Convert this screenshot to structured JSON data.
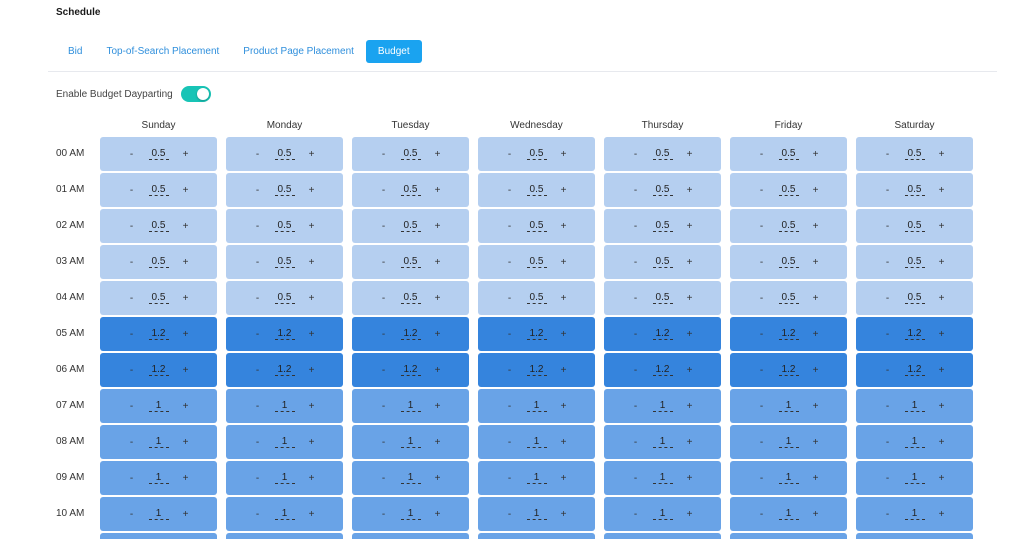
{
  "section_title": "Schedule",
  "tabs": [
    {
      "label": "Bid",
      "active": false
    },
    {
      "label": "Top-of-Search Placement",
      "active": false
    },
    {
      "label": "Product Page Placement",
      "active": false
    },
    {
      "label": "Budget",
      "active": true
    }
  ],
  "toggle": {
    "label": "Enable Budget Dayparting",
    "enabled": true
  },
  "days": [
    "Sunday",
    "Monday",
    "Tuesday",
    "Wednesday",
    "Thursday",
    "Friday",
    "Saturday"
  ],
  "hours": [
    {
      "label": "00 AM",
      "value": "0.5",
      "level": "low"
    },
    {
      "label": "01 AM",
      "value": "0.5",
      "level": "low"
    },
    {
      "label": "02 AM",
      "value": "0.5",
      "level": "low"
    },
    {
      "label": "03 AM",
      "value": "0.5",
      "level": "low"
    },
    {
      "label": "04 AM",
      "value": "0.5",
      "level": "low"
    },
    {
      "label": "05 AM",
      "value": "1.2",
      "level": "high"
    },
    {
      "label": "06 AM",
      "value": "1.2",
      "level": "high"
    },
    {
      "label": "07 AM",
      "value": "1",
      "level": "mid"
    },
    {
      "label": "08 AM",
      "value": "1",
      "level": "mid"
    },
    {
      "label": "09 AM",
      "value": "1",
      "level": "mid"
    },
    {
      "label": "10 AM",
      "value": "1",
      "level": "mid"
    }
  ],
  "cell_controls": {
    "minus": "-",
    "plus": "+"
  },
  "colors": {
    "low": "#b5cff0",
    "high": "#3584dd",
    "mid": "#69a3e7",
    "accent": "#1aa3f0",
    "toggle": "#18c4b6"
  }
}
